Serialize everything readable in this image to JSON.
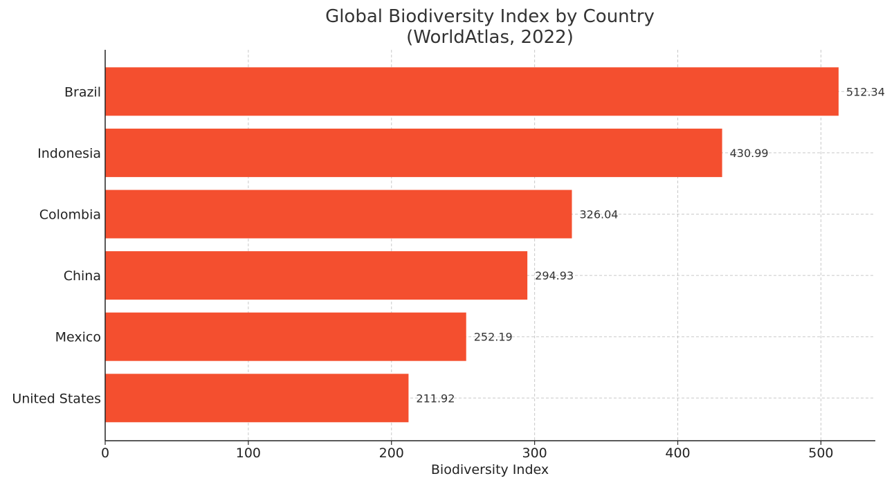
{
  "chart_data": {
    "type": "bar",
    "orientation": "horizontal",
    "title": [
      "Global Biodiversity Index by Country",
      "(WorldAtlas, 2022)"
    ],
    "xlabel": "Biodiversity Index",
    "ylabel": "",
    "categories": [
      "Brazil",
      "Indonesia",
      "Colombia",
      "China",
      "Mexico",
      "United States"
    ],
    "values": [
      512.34,
      430.99,
      326.04,
      294.93,
      252.19,
      211.92
    ],
    "data_labels": [
      "512.34",
      "430.99",
      "326.04",
      "294.93",
      "252.19",
      "211.92"
    ],
    "xlim": [
      0,
      538
    ],
    "xticks": [
      0,
      100,
      200,
      300,
      400,
      500
    ],
    "grid": true,
    "bar_color": "#f44f2f"
  }
}
